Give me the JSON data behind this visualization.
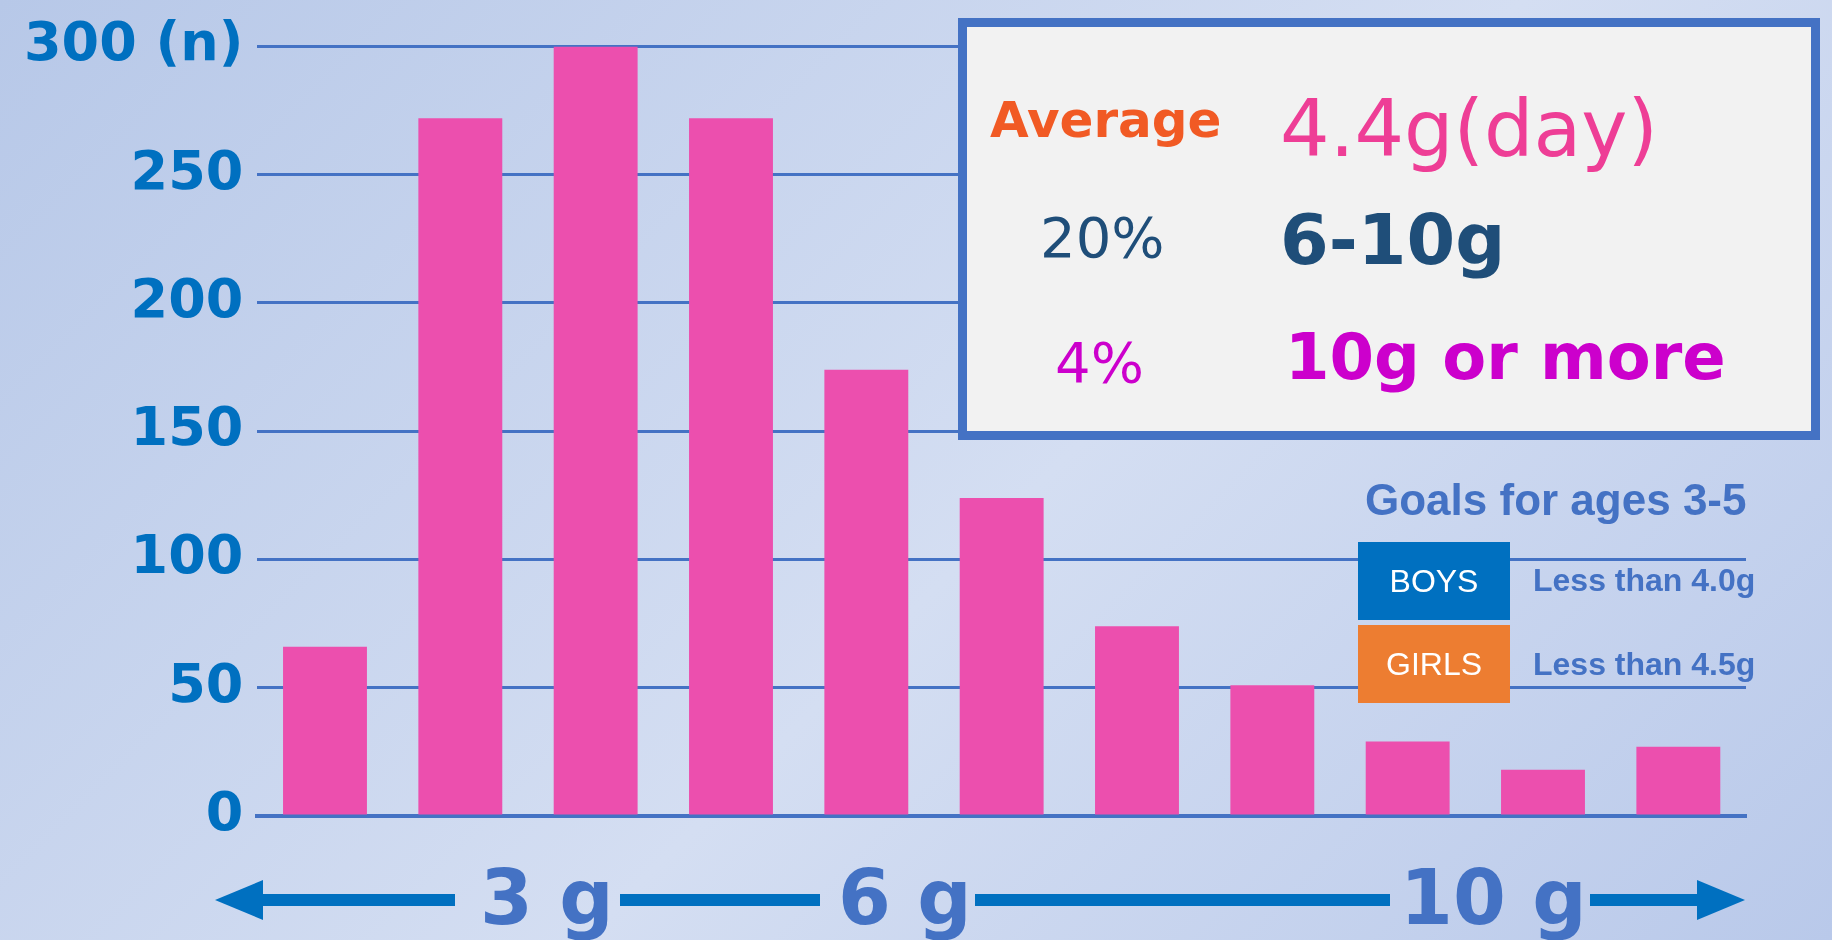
{
  "chart_data": {
    "type": "bar",
    "categories": [
      null,
      null,
      null,
      null,
      null,
      null,
      null,
      null,
      null,
      null,
      null
    ],
    "values": [
      66,
      272,
      300,
      272,
      174,
      124,
      74,
      51,
      29,
      18,
      27
    ],
    "color": "#ec4fae",
    "ylim": [
      0,
      300
    ],
    "yticks": [
      0,
      50,
      100,
      150,
      200,
      250,
      {
        "value": 300,
        "label": "300 (n)"
      }
    ],
    "grid": "y",
    "legend": false,
    "annotations": [
      "Average",
      "4.4g(day)",
      "20%",
      "6-10g",
      "4%",
      "10g or more",
      "Goals for ages 3-5",
      "BOYS",
      "Less than 4.0g",
      "GIRLS",
      "Less than 4.5g",
      "3 g",
      "6 g",
      "10 g"
    ]
  }
}
